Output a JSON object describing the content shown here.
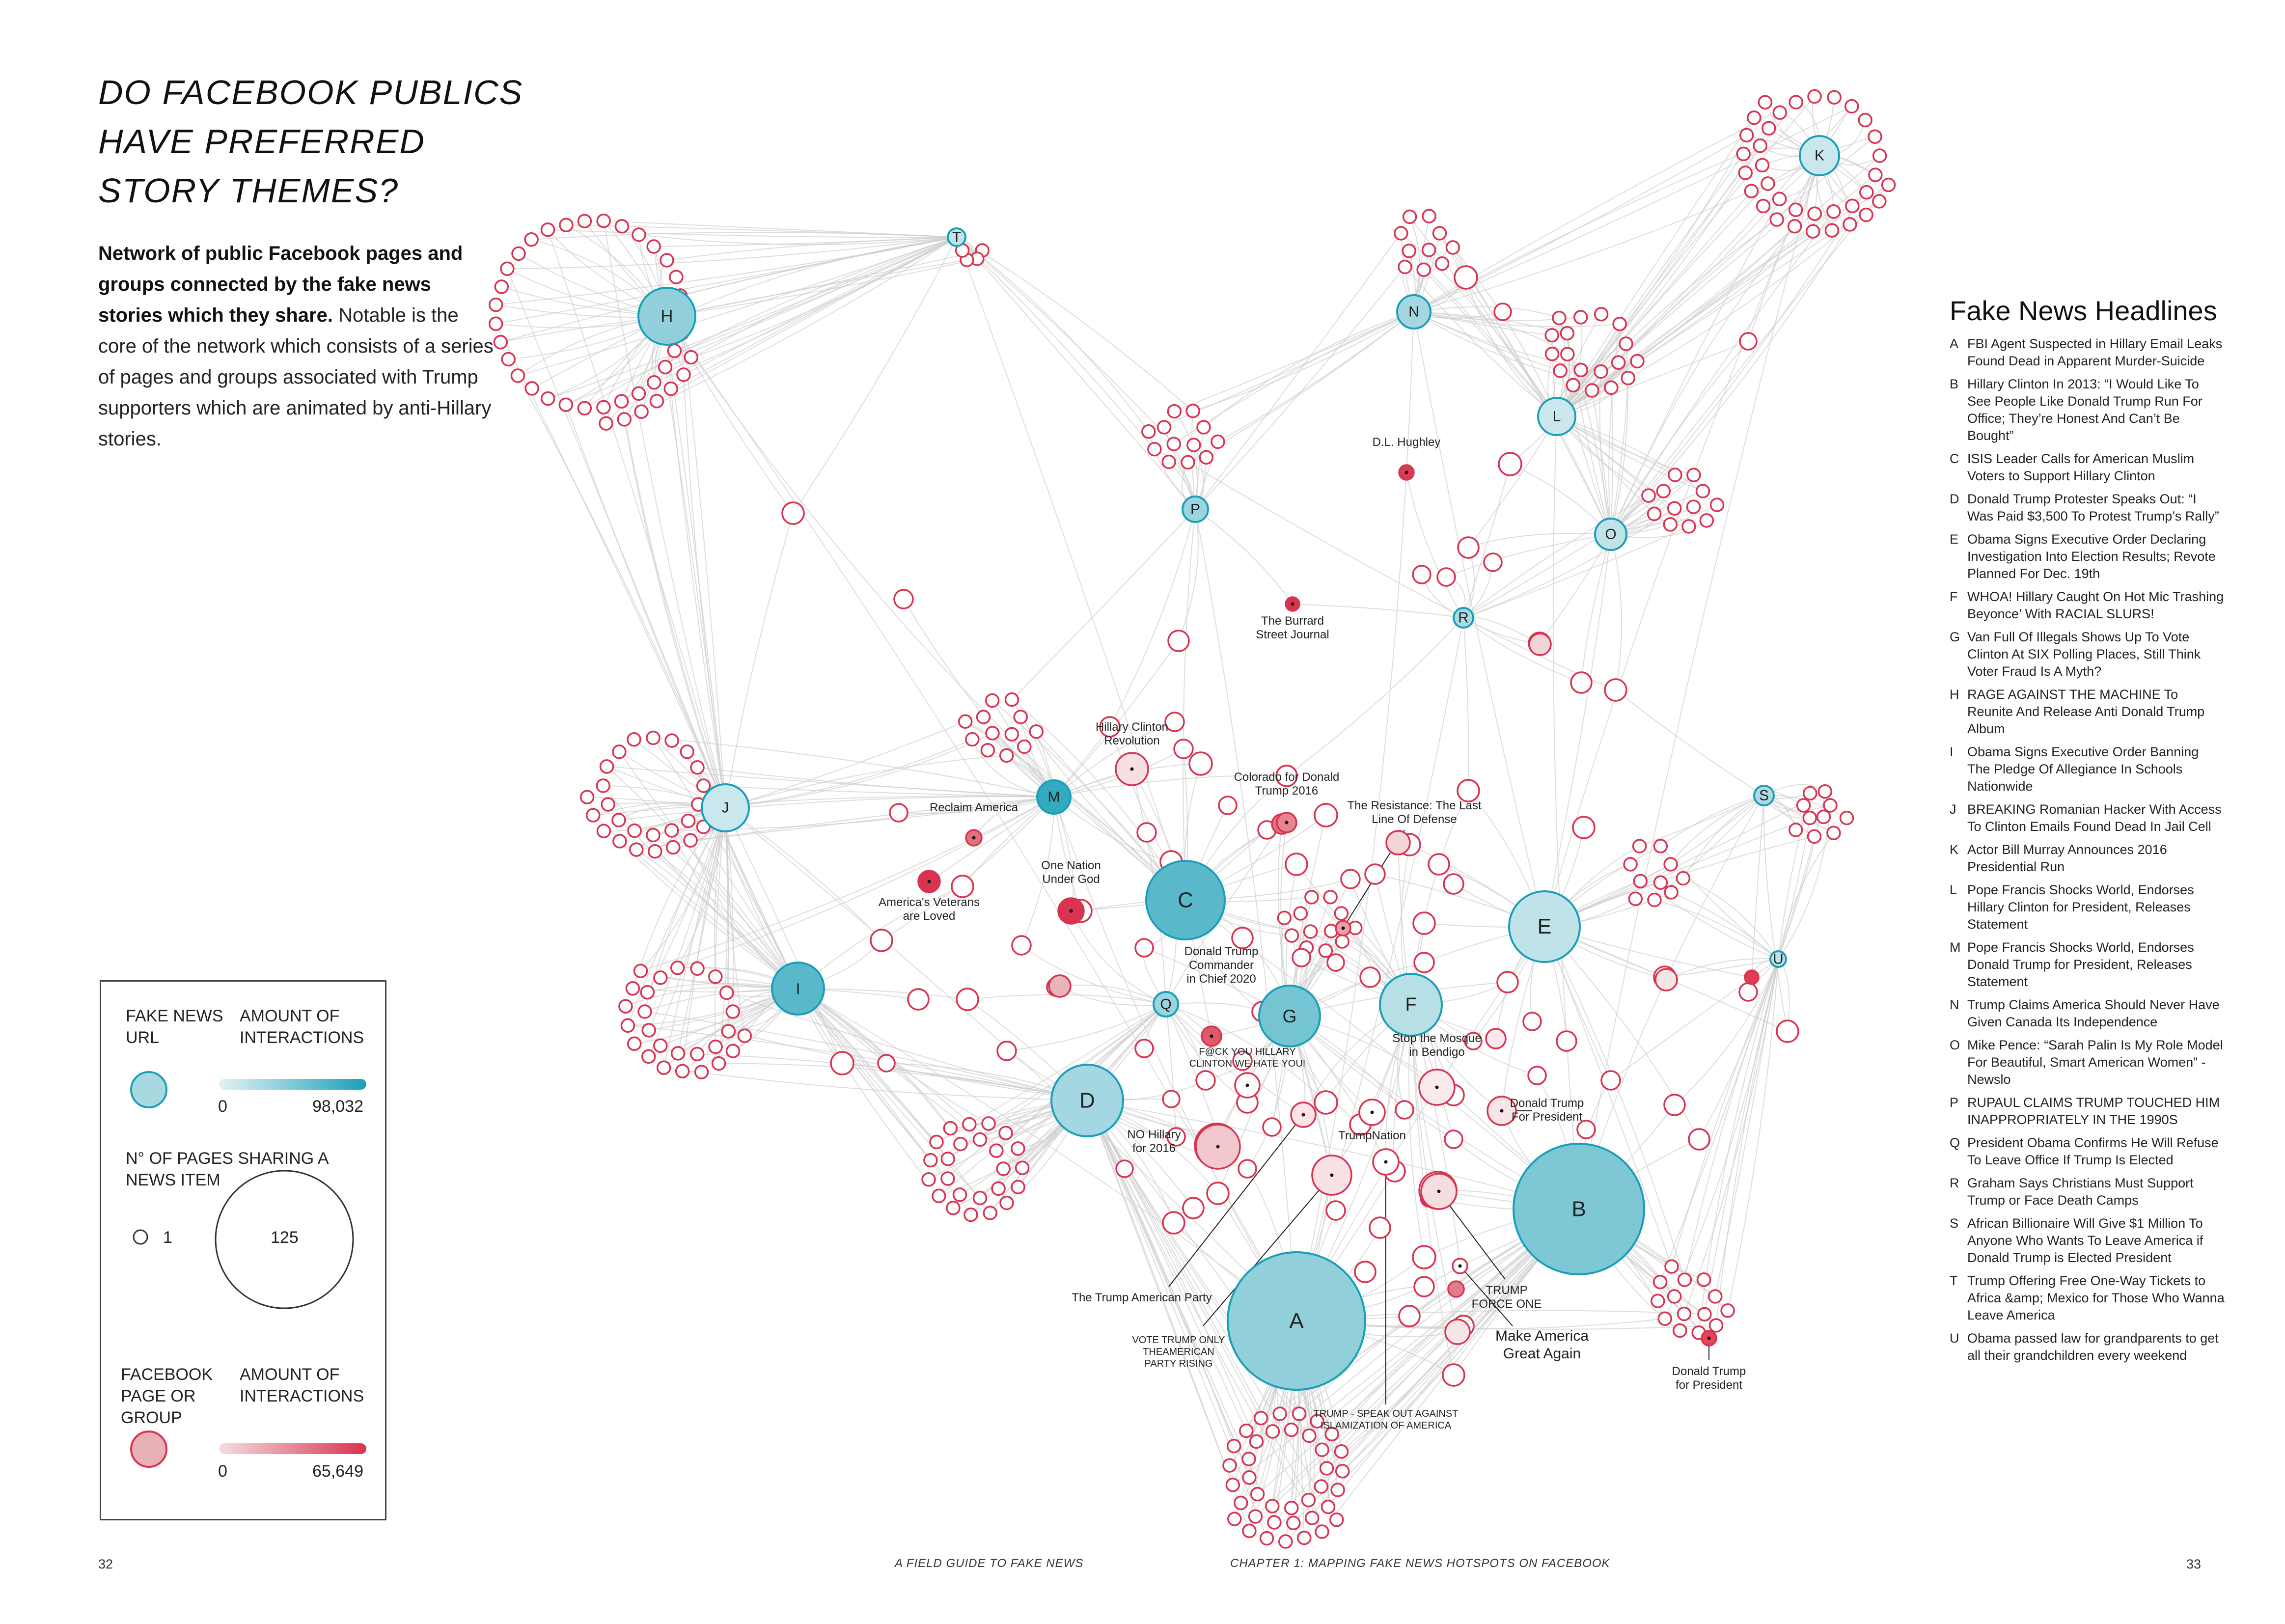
{
  "title": [
    "DO FACEBOOK PUBLICS",
    "HAVE PREFERRED",
    "STORY THEMES?"
  ],
  "intro": {
    "bold": "Network of public Facebook pages and groups connected by the fake news stories which they share.",
    "rest": " Notable is the core of the network which consists of a series of pages and groups associated with Trump supporters which are animated by anti-Hillary stories."
  },
  "legend": {
    "url_title": "FAKE NEWS URL",
    "url_amount": "AMOUNT OF INTERACTIONS",
    "url_min": "0",
    "url_max": "98,032",
    "pages_title": "N° OF PAGES SHARING A NEWS ITEM",
    "pages_min": "1",
    "pages_max": "125",
    "fb_title": "FACEBOOK PAGE OR GROUP",
    "fb_amount": "AMOUNT OF INTERACTIONS",
    "fb_min": "0",
    "fb_max": "65,649",
    "colors": {
      "url": "#1a9fb8",
      "page": "#d9334f"
    }
  },
  "headlines_title": "Fake News Headlines",
  "headlines": [
    {
      "k": "A",
      "v": "FBI Agent Suspected in Hillary Email Leaks Found Dead in Apparent Murder-Suicide"
    },
    {
      "k": "B",
      "v": "Hillary Clinton In 2013: “I Would Like To See People Like Donald Trump Run For Office; They’re Honest And Can’t Be Bought”"
    },
    {
      "k": "C",
      "v": "ISIS Leader Calls for American Muslim Voters to Support Hillary Clinton"
    },
    {
      "k": "D",
      "v": "Donald Trump Protester Speaks Out: “I Was Paid $3,500 To Protest Trump’s Rally”"
    },
    {
      "k": "E",
      "v": "Obama Signs Executive Order Declaring Investigation Into Election Results; Revote Planned For Dec. 19th"
    },
    {
      "k": "F",
      "v": "WHOA! Hillary Caught On Hot Mic Trashing Beyonce’ With RACIAL SLURS!"
    },
    {
      "k": "G",
      "v": "Van Full Of Illegals Shows Up To Vote Clinton At SIX Polling Places, Still Think Voter Fraud Is A Myth?"
    },
    {
      "k": "H",
      "v": "RAGE AGAINST THE MACHINE To Reunite And Release Anti Donald Trump Album"
    },
    {
      "k": "I",
      "v": "Obama Signs Executive Order Banning The Pledge Of Allegiance In Schools Nationwide"
    },
    {
      "k": "J",
      "v": "BREAKING Romanian Hacker With Access To Clinton Emails Found Dead In Jail Cell"
    },
    {
      "k": "K",
      "v": "Actor Bill Murray Announces 2016 Presidential Run"
    },
    {
      "k": "L",
      "v": "Pope Francis Shocks World, Endorses Hillary Clinton for President, Releases Statement"
    },
    {
      "k": "M",
      "v": "Pope Francis Shocks World, Endorses Donald Trump for President, Releases Statement"
    },
    {
      "k": "N",
      "v": "Trump Claims America Should Never Have Given Canada Its Independence"
    },
    {
      "k": "O",
      "v": "Mike Pence: “Sarah Palin Is My Role Model For Beautiful, Smart American Women” - Newslo"
    },
    {
      "k": "P",
      "v": "RUPAUL CLAIMS TRUMP TOUCHED HIM INAPPROPRIATELY IN THE 1990S"
    },
    {
      "k": "Q",
      "v": "President Obama Confirms He Will Refuse To Leave Office If Trump Is Elected"
    },
    {
      "k": "R",
      "v": "Graham Says Christians Must Support Trump or Face Death Camps"
    },
    {
      "k": "S",
      "v": "African Billionaire Will Give $1 Million To Anyone Who Wants To Leave America if Donald Trump is Elected President"
    },
    {
      "k": "T",
      "v": "Trump Offering Free One-Way Tickets to Africa &amp; Mexico for Those Who Wanna Leave America"
    },
    {
      "k": "U",
      "v": "Obama passed law for grandparents to get all their grandchildren every weekend"
    }
  ],
  "url_nodes": [
    {
      "id": "A",
      "intensity": 0.45
    },
    {
      "id": "B",
      "intensity": 0.55
    },
    {
      "id": "C",
      "intensity": 0.75
    },
    {
      "id": "D",
      "intensity": 0.35
    },
    {
      "id": "E",
      "intensity": 0.2
    },
    {
      "id": "F",
      "intensity": 0.25
    },
    {
      "id": "G",
      "intensity": 0.6
    },
    {
      "id": "H",
      "intensity": 0.45
    },
    {
      "id": "I",
      "intensity": 0.75
    },
    {
      "id": "J",
      "intensity": 0.15
    },
    {
      "id": "K",
      "intensity": 0.15
    },
    {
      "id": "L",
      "intensity": 0.15
    },
    {
      "id": "M",
      "intensity": 0.95
    },
    {
      "id": "N",
      "intensity": 0.35
    },
    {
      "id": "O",
      "intensity": 0.2
    },
    {
      "id": "P",
      "intensity": 0.4
    },
    {
      "id": "Q",
      "intensity": 0.4
    },
    {
      "id": "R",
      "intensity": 0.3
    },
    {
      "id": "S",
      "intensity": 0.3
    },
    {
      "id": "T",
      "intensity": 0.2
    },
    {
      "id": "U",
      "intensity": 0.2
    }
  ],
  "page_labels": [
    {
      "lines": [
        "D.L. Hughley"
      ]
    },
    {
      "lines": [
        "The Burrard",
        "Street Journal"
      ]
    },
    {
      "lines": [
        "Hillary Clinton",
        "Revolution"
      ]
    },
    {
      "lines": [
        "Colorado for Donald",
        "Trump 2016"
      ]
    },
    {
      "lines": [
        "Reclaim America"
      ]
    },
    {
      "lines": [
        "One Nation",
        "Under God"
      ]
    },
    {
      "lines": [
        "America's Veterans",
        "are Loved"
      ]
    },
    {
      "lines": [
        "The Resistance: The Last",
        "Line Of Defense"
      ]
    },
    {
      "lines": [
        "Donald Trump",
        "Commander",
        "in Chief 2020"
      ]
    },
    {
      "lines": [
        "F@CK YOU HILLARY",
        "CLINTON WE HATE YOU!"
      ]
    },
    {
      "lines": [
        "Stop the Mosque",
        "in Bendigo"
      ]
    },
    {
      "lines": [
        "Donald Trump",
        "For President"
      ]
    },
    {
      "lines": [
        "NO Hillary",
        "for 2016"
      ]
    },
    {
      "lines": [
        "TrumpNation"
      ]
    },
    {
      "lines": [
        "The Trump American Party"
      ]
    },
    {
      "lines": [
        "VOTE TRUMP ONLY",
        "THEAMERICAN",
        "PARTY RISING"
      ]
    },
    {
      "lines": [
        "TRUMP",
        "FORCE ONE"
      ]
    },
    {
      "lines": [
        "Make America",
        "Great Again"
      ]
    },
    {
      "lines": [
        "Donald Trump",
        "for President"
      ]
    },
    {
      "lines": [
        "TRUMP - SPEAK OUT AGAINST",
        "ISLAMIZATION OF AMERICA"
      ]
    }
  ],
  "footer": {
    "left_page": "32",
    "left_title": "A FIELD GUIDE TO FAKE NEWS",
    "right_title": "CHAPTER 1: MAPPING FAKE NEWS HOTSPOTS  ON FACEBOOK",
    "right_page": "33"
  }
}
